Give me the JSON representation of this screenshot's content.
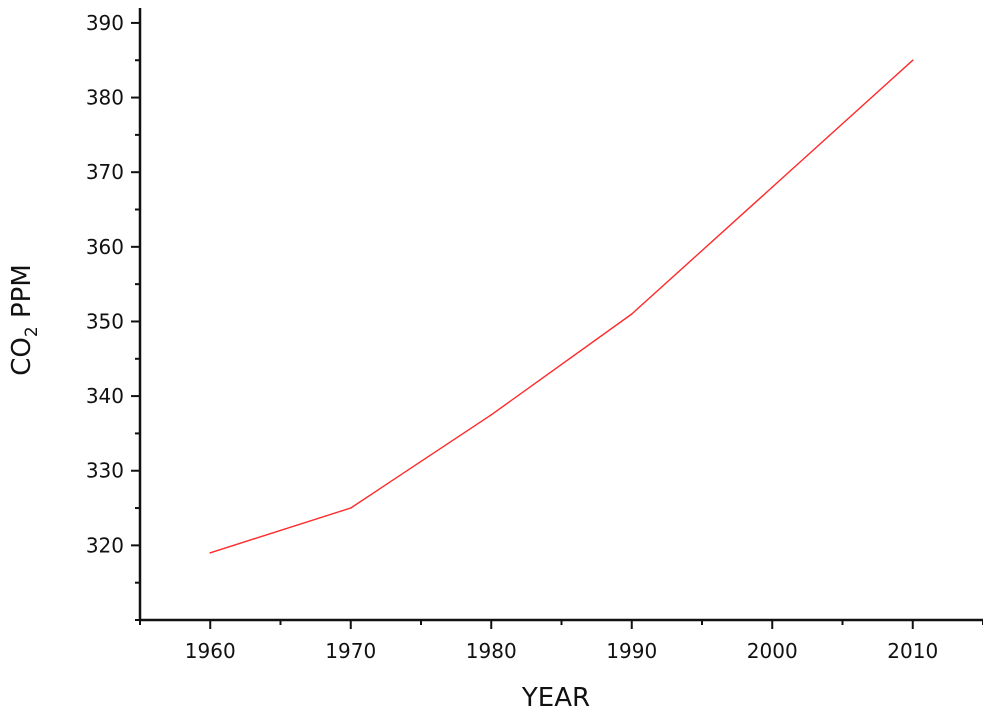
{
  "chart_data": {
    "type": "line",
    "title": "",
    "xlabel": "YEAR",
    "ylabel": {
      "prefix": "CO",
      "subscript": "2",
      "suffix": " PPM"
    },
    "xlim": [
      1955,
      2015
    ],
    "ylim": [
      310,
      392
    ],
    "x_ticks": [
      1960,
      1970,
      1980,
      1990,
      2000,
      2010
    ],
    "y_ticks": [
      320,
      330,
      340,
      350,
      360,
      370,
      380,
      390
    ],
    "x_minor_step": 5,
    "y_minor_step": 5,
    "grid": false,
    "legend": "none",
    "series": [
      {
        "color": "#ff2a2a",
        "x": [
          1960,
          1970,
          1980,
          1990,
          2000,
          2010
        ],
        "y": [
          319,
          325,
          337.5,
          351,
          368,
          385
        ]
      }
    ]
  }
}
